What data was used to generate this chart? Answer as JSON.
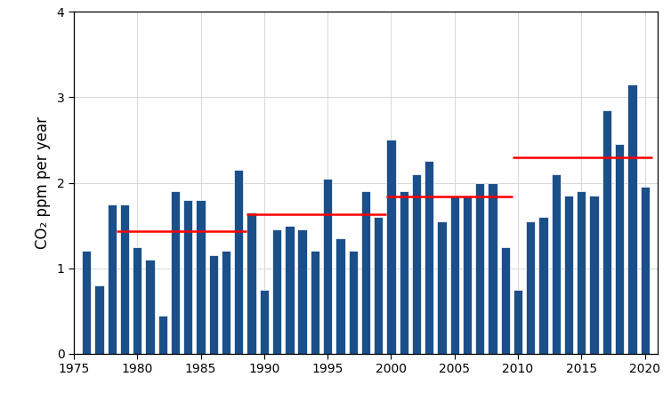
{
  "years": [
    1976,
    1977,
    1978,
    1979,
    1980,
    1981,
    1982,
    1983,
    1984,
    1985,
    1986,
    1987,
    1988,
    1989,
    1990,
    1991,
    1992,
    1993,
    1994,
    1995,
    1996,
    1997,
    1998,
    1999,
    2000,
    2001,
    2002,
    2003,
    2004,
    2005,
    2006,
    2007,
    2008,
    2009,
    2010,
    2011,
    2012,
    2013,
    2014,
    2015,
    2016,
    2017,
    2018,
    2019,
    2020
  ],
  "values": [
    1.2,
    0.8,
    1.75,
    1.75,
    1.25,
    1.1,
    0.45,
    1.9,
    1.8,
    1.8,
    1.15,
    1.2,
    2.15,
    1.65,
    0.75,
    1.45,
    1.5,
    1.45,
    1.2,
    2.05,
    1.35,
    1.2,
    1.9,
    1.6,
    2.5,
    1.9,
    2.1,
    2.25,
    1.55,
    1.85,
    1.85,
    2.0,
    2.0,
    1.25,
    0.75,
    1.55,
    1.6,
    2.1,
    1.85,
    1.9,
    1.85,
    2.85,
    2.45,
    3.15,
    1.95
  ],
  "bar_color": "#1a4f8a",
  "red_lines": [
    {
      "x_start": 1978.4,
      "x_end": 1988.6,
      "y": 1.43
    },
    {
      "x_start": 1988.6,
      "x_end": 1999.6,
      "y": 1.63
    },
    {
      "x_start": 1999.6,
      "x_end": 2009.6,
      "y": 1.84
    },
    {
      "x_start": 2009.6,
      "x_end": 2020.6,
      "y": 2.3
    }
  ],
  "ylabel": "CO₂ ppm per year",
  "ylim": [
    0,
    4
  ],
  "xlim": [
    1975.0,
    2021.0
  ],
  "yticks": [
    0,
    1,
    2,
    3,
    4
  ],
  "xticks": [
    1975,
    1980,
    1985,
    1990,
    1995,
    2000,
    2005,
    2010,
    2015,
    2020
  ],
  "grid_color": "#d8d8d8",
  "background_color": "#ffffff",
  "bar_width": 0.72,
  "ylabel_fontsize": 12,
  "tick_fontsize": 10,
  "fig_width": 7.54,
  "fig_height": 4.42,
  "dpi": 100
}
